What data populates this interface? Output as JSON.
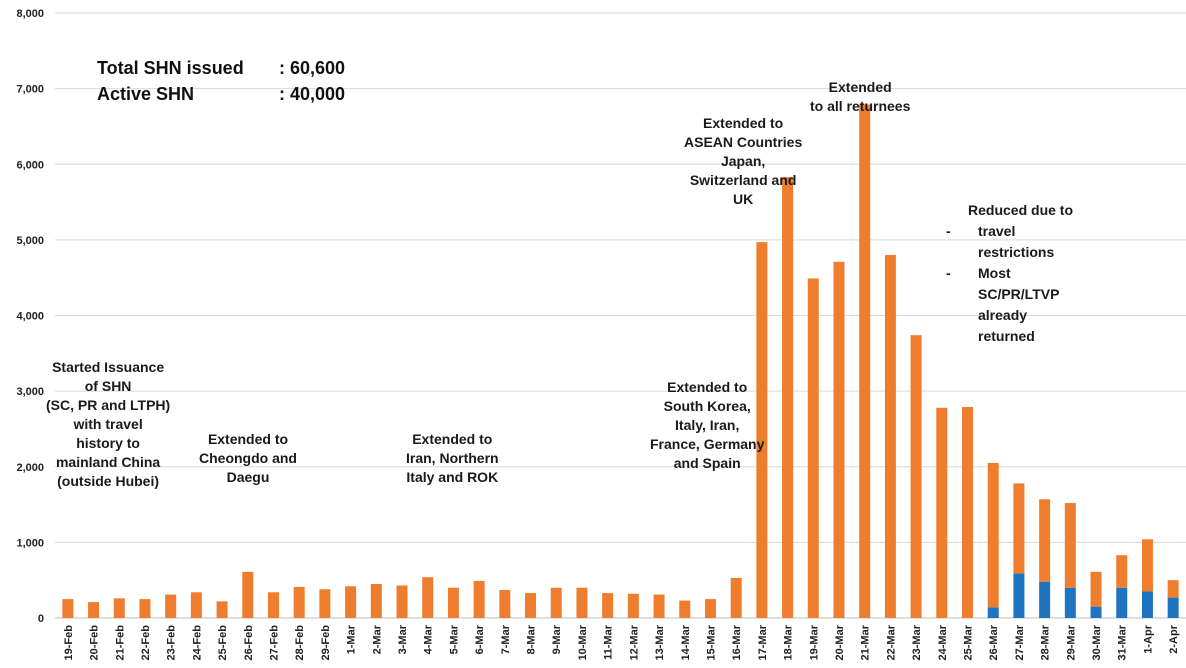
{
  "summary": {
    "total_label": "Total SHN issued",
    "total_value": ": 60,600",
    "active_label": "Active SHN",
    "active_value": ": 40,000"
  },
  "annotations": [
    {
      "id": "china",
      "lines": [
        "Started Issuance",
        "of SHN",
        "(SC, PR and LTPH)",
        "with travel",
        "history to",
        "mainland China",
        "(outside Hubei)"
      ]
    },
    {
      "id": "daegu",
      "lines": [
        "Extended to",
        "Cheongdo and",
        "Daegu"
      ]
    },
    {
      "id": "iran",
      "lines": [
        "Extended to",
        "Iran, Northern",
        "Italy and ROK"
      ]
    },
    {
      "id": "europe",
      "lines": [
        "Extended to",
        "South Korea,",
        "Italy, Iran,",
        "France, Germany",
        "and Spain"
      ]
    },
    {
      "id": "asean",
      "lines": [
        "Extended to",
        "ASEAN Countries",
        "Japan,",
        "Switzerland and",
        "UK"
      ]
    },
    {
      "id": "all",
      "lines": [
        "Extended",
        "to all returnees"
      ]
    }
  ],
  "reduced_note": {
    "heading": "Reduced due to",
    "bullet_symbol": "-",
    "bullets": [
      [
        "travel",
        "restrictions"
      ],
      [
        "Most",
        "SC/PR/LTVP",
        "already",
        "returned"
      ]
    ]
  },
  "chart_data": {
    "type": "bar",
    "stacked": true,
    "categories": [
      "19-Feb",
      "20-Feb",
      "21-Feb",
      "22-Feb",
      "23-Feb",
      "24-Feb",
      "25-Feb",
      "26-Feb",
      "27-Feb",
      "28-Feb",
      "29-Feb",
      "1-Mar",
      "2-Mar",
      "3-Mar",
      "4-Mar",
      "5-Mar",
      "6-Mar",
      "7-Mar",
      "8-Mar",
      "9-Mar",
      "10-Mar",
      "11-Mar",
      "12-Mar",
      "13-Mar",
      "14-Mar",
      "15-Mar",
      "16-Mar",
      "17-Mar",
      "18-Mar",
      "19-Mar",
      "20-Mar",
      "21-Mar",
      "22-Mar",
      "23-Mar",
      "24-Mar",
      "25-Mar",
      "26-Mar",
      "27-Mar",
      "28-Mar",
      "29-Mar",
      "30-Mar",
      "31-Mar",
      "1-Apr",
      "2-Apr"
    ],
    "series": [
      {
        "color": "#1f74c1",
        "values": [
          0,
          0,
          0,
          0,
          0,
          0,
          0,
          0,
          0,
          0,
          0,
          0,
          0,
          0,
          0,
          0,
          0,
          0,
          0,
          0,
          0,
          0,
          0,
          0,
          0,
          0,
          0,
          0,
          0,
          0,
          0,
          0,
          0,
          0,
          0,
          0,
          140,
          590,
          480,
          400,
          150,
          400,
          350,
          270
        ]
      },
      {
        "color": "#ef7d2e",
        "values": [
          250,
          210,
          260,
          250,
          310,
          340,
          220,
          610,
          340,
          410,
          380,
          420,
          450,
          430,
          540,
          400,
          490,
          370,
          330,
          400,
          400,
          330,
          320,
          310,
          230,
          250,
          530,
          4970,
          5830,
          4490,
          4710,
          6790,
          4800,
          3740,
          2780,
          2790,
          1910,
          1190,
          1090,
          1120,
          460,
          430,
          690,
          230
        ]
      }
    ],
    "ylim": [
      0,
      8000
    ],
    "yticks": [
      0,
      1000,
      2000,
      3000,
      4000,
      5000,
      6000,
      7000,
      8000
    ],
    "ytick_labels": [
      "0",
      "1,000",
      "2,000",
      "3,000",
      "4,000",
      "5,000",
      "6,000",
      "7,000",
      "8,000"
    ],
    "grid": true,
    "legend": "none"
  }
}
